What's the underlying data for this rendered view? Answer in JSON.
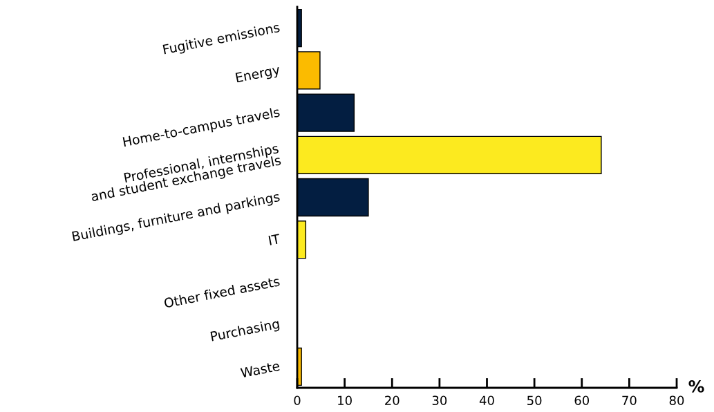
{
  "chart_data": {
    "type": "bar",
    "orientation": "horizontal",
    "xlabel": "%",
    "categories": [
      "Fugitive emissions",
      "Energy",
      "Home-to-campus travels",
      "Professional, internships\nand student exchange travels",
      "Buildings, furniture and parkings",
      "IT",
      "Other fixed assets",
      "Purchasing",
      "Waste"
    ],
    "values": [
      0.9,
      4.8,
      12,
      64.1,
      15,
      1.8,
      0,
      0,
      0.9
    ],
    "colors": [
      "#031e41",
      "#fbbb00",
      "#031e41",
      "#fcea1f",
      "#031e41",
      "#fcea1f",
      "#031e41",
      "#fbbb00",
      "#fbbb00"
    ],
    "xlim": [
      0,
      80
    ],
    "xticks": [
      0,
      10,
      20,
      30,
      40,
      50,
      60,
      70,
      80
    ],
    "grid": false,
    "legend": false
  }
}
